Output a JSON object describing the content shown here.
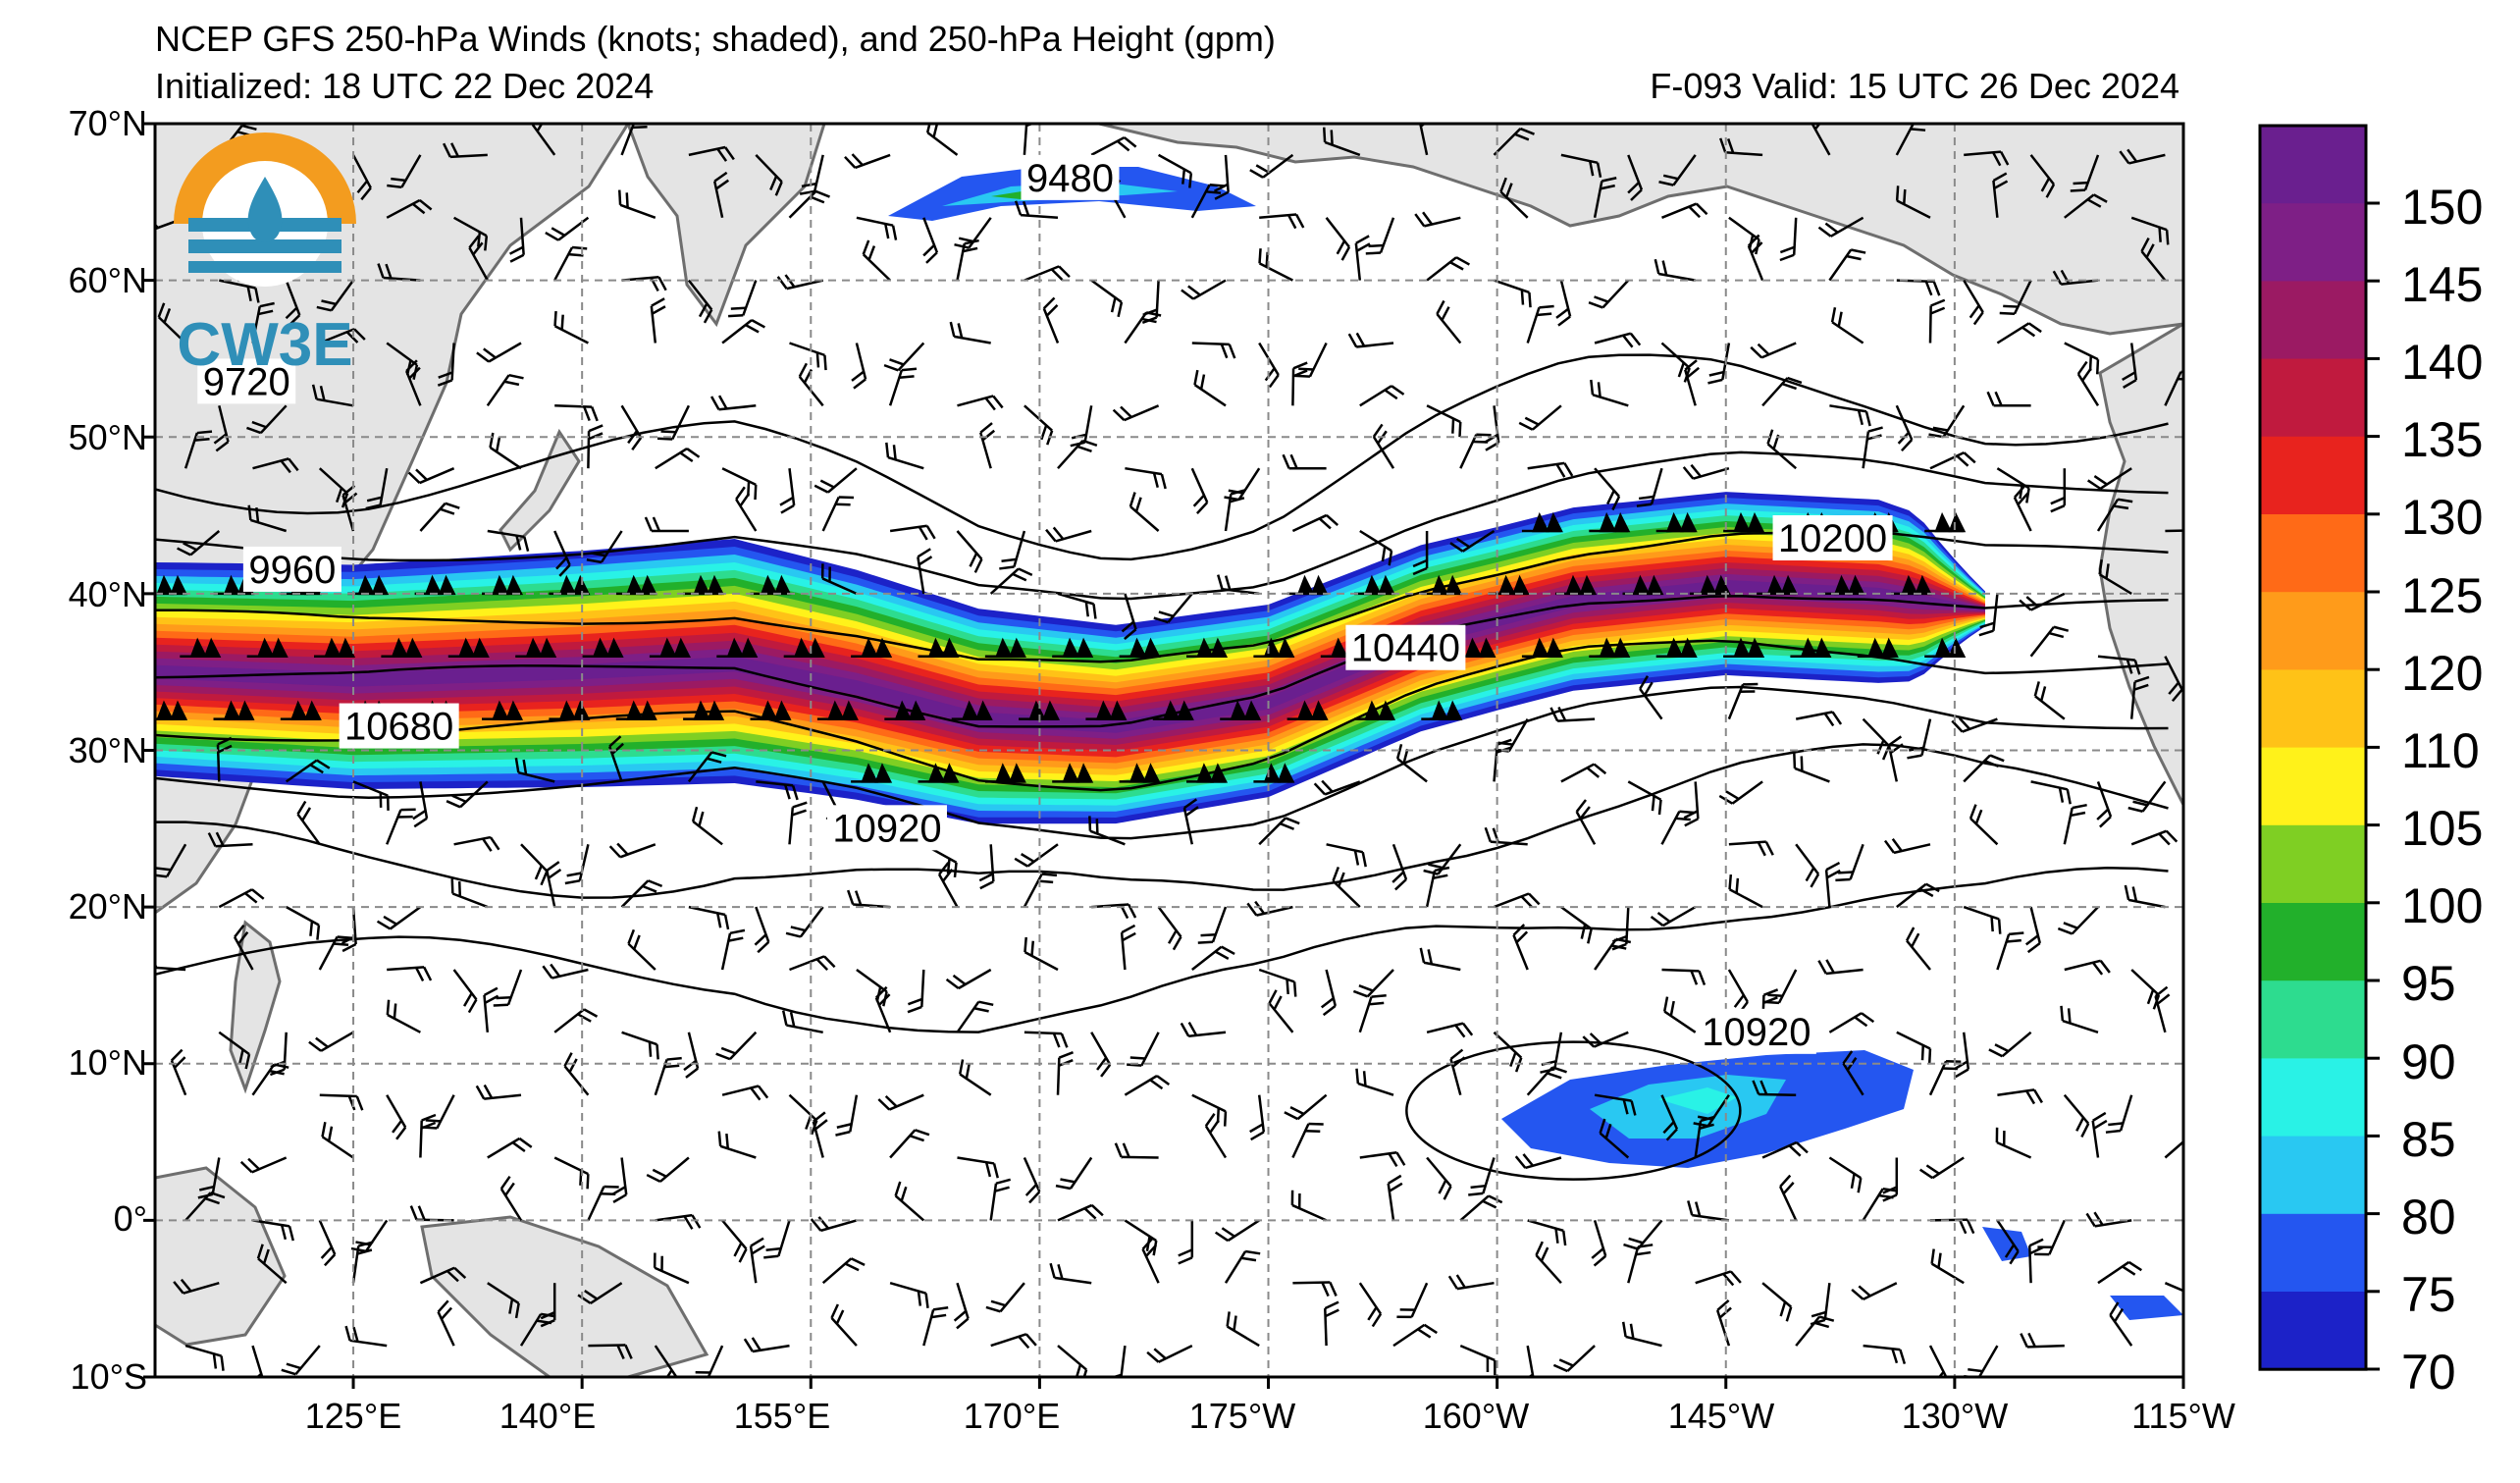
{
  "header": {
    "title": "NCEP GFS 250-hPa Winds (knots; shaded), and 250-hPa Height (gpm)",
    "initialized": "Initialized: 18 UTC 22 Dec 2024",
    "valid": "F-093  Valid: 15 UTC 26 Dec 2024"
  },
  "logo": {
    "text": "CW3E",
    "colors": {
      "ring": "#f39c1f",
      "wave": "#2f8fb8"
    }
  },
  "map": {
    "lat_labels": [
      "70°N",
      "60°N",
      "50°N",
      "40°N",
      "30°N",
      "20°N",
      "10°N",
      "0°",
      "10°S"
    ],
    "lat_values": [
      70,
      60,
      50,
      40,
      30,
      20,
      10,
      0,
      -10
    ],
    "lon_labels": [
      "125°E",
      "140°E",
      "155°E",
      "170°E",
      "175°W",
      "160°W",
      "145°W",
      "130°W",
      "115°W"
    ],
    "lon_values": [
      125,
      140,
      155,
      170,
      185,
      200,
      215,
      230,
      245
    ],
    "extent": {
      "lon_min": 112,
      "lon_max": 245,
      "lat_min": -10,
      "lat_max": 70
    },
    "height_labels": [
      {
        "text": "9480",
        "lon": 172,
        "lat": 66.5
      },
      {
        "text": "9720",
        "lon": 118,
        "lat": 53.5
      },
      {
        "text": "9960",
        "lon": 121,
        "lat": 41.5
      },
      {
        "text": "10680",
        "lon": 128,
        "lat": 31.5
      },
      {
        "text": "10920",
        "lon": 160,
        "lat": 25
      },
      {
        "text": "10440",
        "lon": 194,
        "lat": 36.5
      },
      {
        "text": "10200",
        "lon": 222,
        "lat": 43.5
      },
      {
        "text": "10920",
        "lon": 217,
        "lat": 12
      }
    ],
    "height_contours_gpm": [
      9480,
      9720,
      9960,
      10200,
      10440,
      10680,
      10920
    ]
  },
  "colorbar": {
    "labels": [
      "150",
      "145",
      "140",
      "135",
      "130",
      "125",
      "120",
      "110",
      "105",
      "100",
      "95",
      "90",
      "85",
      "80",
      "75",
      "70"
    ],
    "colors": [
      "#6a1f8f",
      "#7e1f86",
      "#9b1a63",
      "#c01a3e",
      "#e8231e",
      "#ff6a17",
      "#ff9b1a",
      "#ffc217",
      "#fff21a",
      "#7fcf23",
      "#22b02b",
      "#2ddc8f",
      "#29f2e6",
      "#29c8f2",
      "#2456f0",
      "#1c22c8"
    ]
  },
  "jet": {
    "axis": [
      [
        112,
        35
      ],
      [
        125,
        34.5
      ],
      [
        140,
        35
      ],
      [
        150,
        35.5
      ],
      [
        158,
        34
      ],
      [
        166,
        32
      ],
      [
        175,
        31.5
      ],
      [
        185,
        33
      ],
      [
        195,
        37
      ],
      [
        205,
        39.5
      ],
      [
        215,
        40.5
      ],
      [
        225,
        40
      ],
      [
        232,
        39
      ]
    ],
    "halfwidth": [
      [
        112,
        7
      ],
      [
        150,
        8
      ],
      [
        175,
        6.5
      ],
      [
        200,
        6
      ],
      [
        225,
        6
      ],
      [
        235,
        4
      ]
    ]
  }
}
